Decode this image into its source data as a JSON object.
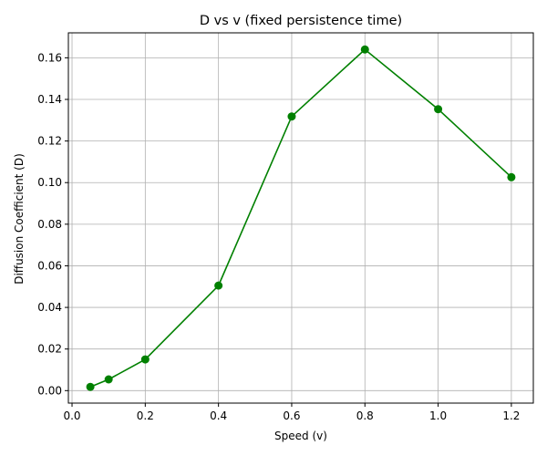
{
  "chart_data": {
    "type": "line",
    "title": "D vs v (fixed persistence time)",
    "xlabel": "Speed (v)",
    "ylabel": "Diffusion Coefficient (D)",
    "xlim": [
      -0.01,
      1.26
    ],
    "ylim": [
      -0.006,
      0.172
    ],
    "grid": true,
    "x_ticks": [
      0.0,
      0.2,
      0.4,
      0.6,
      0.8,
      1.0,
      1.2
    ],
    "x_tick_labels": [
      "0.0",
      "0.2",
      "0.4",
      "0.6",
      "0.8",
      "1.0",
      "1.2"
    ],
    "y_ticks": [
      0.0,
      0.02,
      0.04,
      0.06,
      0.08,
      0.1,
      0.12,
      0.14,
      0.16
    ],
    "y_tick_labels": [
      "0.00",
      "0.02",
      "0.04",
      "0.06",
      "0.08",
      "0.10",
      "0.12",
      "0.14",
      "0.16"
    ],
    "series": [
      {
        "color": "#008000",
        "marker": "circle",
        "x": [
          0.05,
          0.1,
          0.2,
          0.4,
          0.6,
          0.8,
          1.0,
          1.2
        ],
        "y": [
          0.0018,
          0.0054,
          0.015,
          0.0505,
          0.1318,
          0.164,
          0.1353,
          0.1026
        ]
      }
    ]
  }
}
